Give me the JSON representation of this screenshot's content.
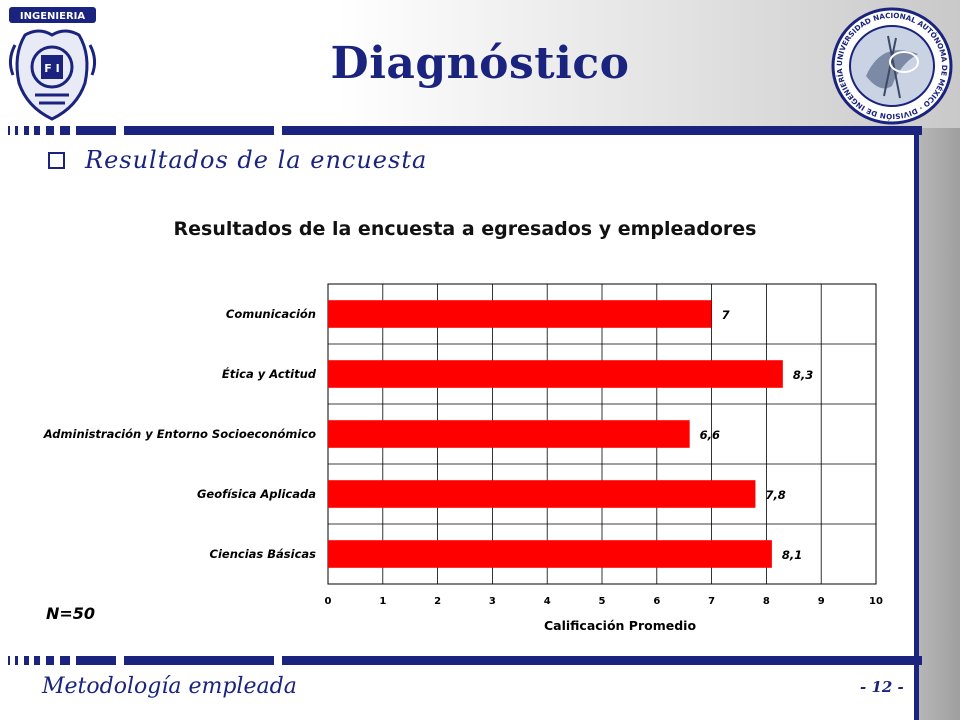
{
  "slide": {
    "title": "Diagnóstico",
    "subtitle": "Resultados de la encuesta",
    "footer_left": "Metodología empleada",
    "footer_right": "- 12 -",
    "sample_label": "N=50",
    "accent_color": "#1a237e",
    "logos": {
      "left": {
        "text": "INGENIERIA",
        "inner": "F I"
      },
      "right": {
        "text": "UNIVERSIDAD NACIONAL AUTÓNOMA DE MÉXICO · DIVISIÓN DE INGENIERÍA EN CIENCIAS DE LA TIERRA"
      }
    }
  },
  "chart_data": {
    "type": "bar",
    "orientation": "horizontal",
    "title": "Resultados de la encuesta a egresados y empleadores",
    "xlabel": "Calificación  Promedio",
    "ylabel": "",
    "categories": [
      "Comunicación",
      "Ética y Actitud",
      "Administración y Entorno Socioeconómico",
      "Geofísica Aplicada",
      "Ciencias Básicas"
    ],
    "values": [
      7,
      8.3,
      6.6,
      7.8,
      8.1
    ],
    "data_labels": [
      "7",
      "8,3",
      "6,6",
      "7,8",
      "8,1"
    ],
    "xlim": [
      0,
      10
    ],
    "xticks": [
      0,
      1,
      2,
      3,
      4,
      5,
      6,
      7,
      8,
      9,
      10
    ],
    "grid": true,
    "legend": "none",
    "bar_color": "#ff0000"
  }
}
